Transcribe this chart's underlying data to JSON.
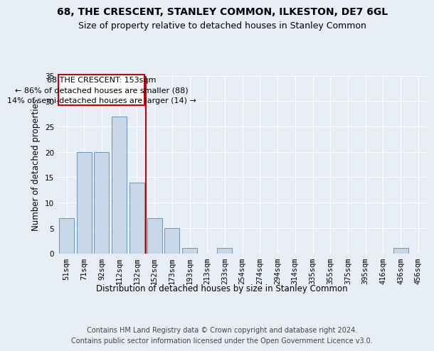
{
  "title": "68, THE CRESCENT, STANLEY COMMON, ILKESTON, DE7 6GL",
  "subtitle": "Size of property relative to detached houses in Stanley Common",
  "xlabel": "Distribution of detached houses by size in Stanley Common",
  "ylabel": "Number of detached properties",
  "footer_line1": "Contains HM Land Registry data © Crown copyright and database right 2024.",
  "footer_line2": "Contains public sector information licensed under the Open Government Licence v3.0.",
  "categories": [
    "51sqm",
    "71sqm",
    "92sqm",
    "112sqm",
    "132sqm",
    "152sqm",
    "173sqm",
    "193sqm",
    "213sqm",
    "233sqm",
    "254sqm",
    "274sqm",
    "294sqm",
    "314sqm",
    "335sqm",
    "355sqm",
    "375sqm",
    "395sqm",
    "416sqm",
    "436sqm",
    "456sqm"
  ],
  "values": [
    7,
    20,
    20,
    27,
    14,
    7,
    5,
    1,
    0,
    1,
    0,
    0,
    0,
    0,
    0,
    0,
    0,
    0,
    0,
    1,
    0
  ],
  "bar_color": "#c8d8e8",
  "bar_edge_color": "#5a8ab0",
  "vline_x_index": 5,
  "vline_color": "#cc0000",
  "annotation_line1": "68 THE CRESCENT: 153sqm",
  "annotation_line2": "← 86% of detached houses are smaller (88)",
  "annotation_line3": "14% of semi-detached houses are larger (14) →",
  "annotation_box_color": "#cc0000",
  "ylim": [
    0,
    35
  ],
  "yticks": [
    0,
    5,
    10,
    15,
    20,
    25,
    30,
    35
  ],
  "bg_color": "#e8eef5",
  "plot_bg_color": "#e8eef5",
  "grid_color": "#ffffff",
  "title_fontsize": 10,
  "subtitle_fontsize": 9,
  "axis_label_fontsize": 8.5,
  "tick_fontsize": 7.5,
  "footer_fontsize": 7,
  "ann_fontsize": 8
}
